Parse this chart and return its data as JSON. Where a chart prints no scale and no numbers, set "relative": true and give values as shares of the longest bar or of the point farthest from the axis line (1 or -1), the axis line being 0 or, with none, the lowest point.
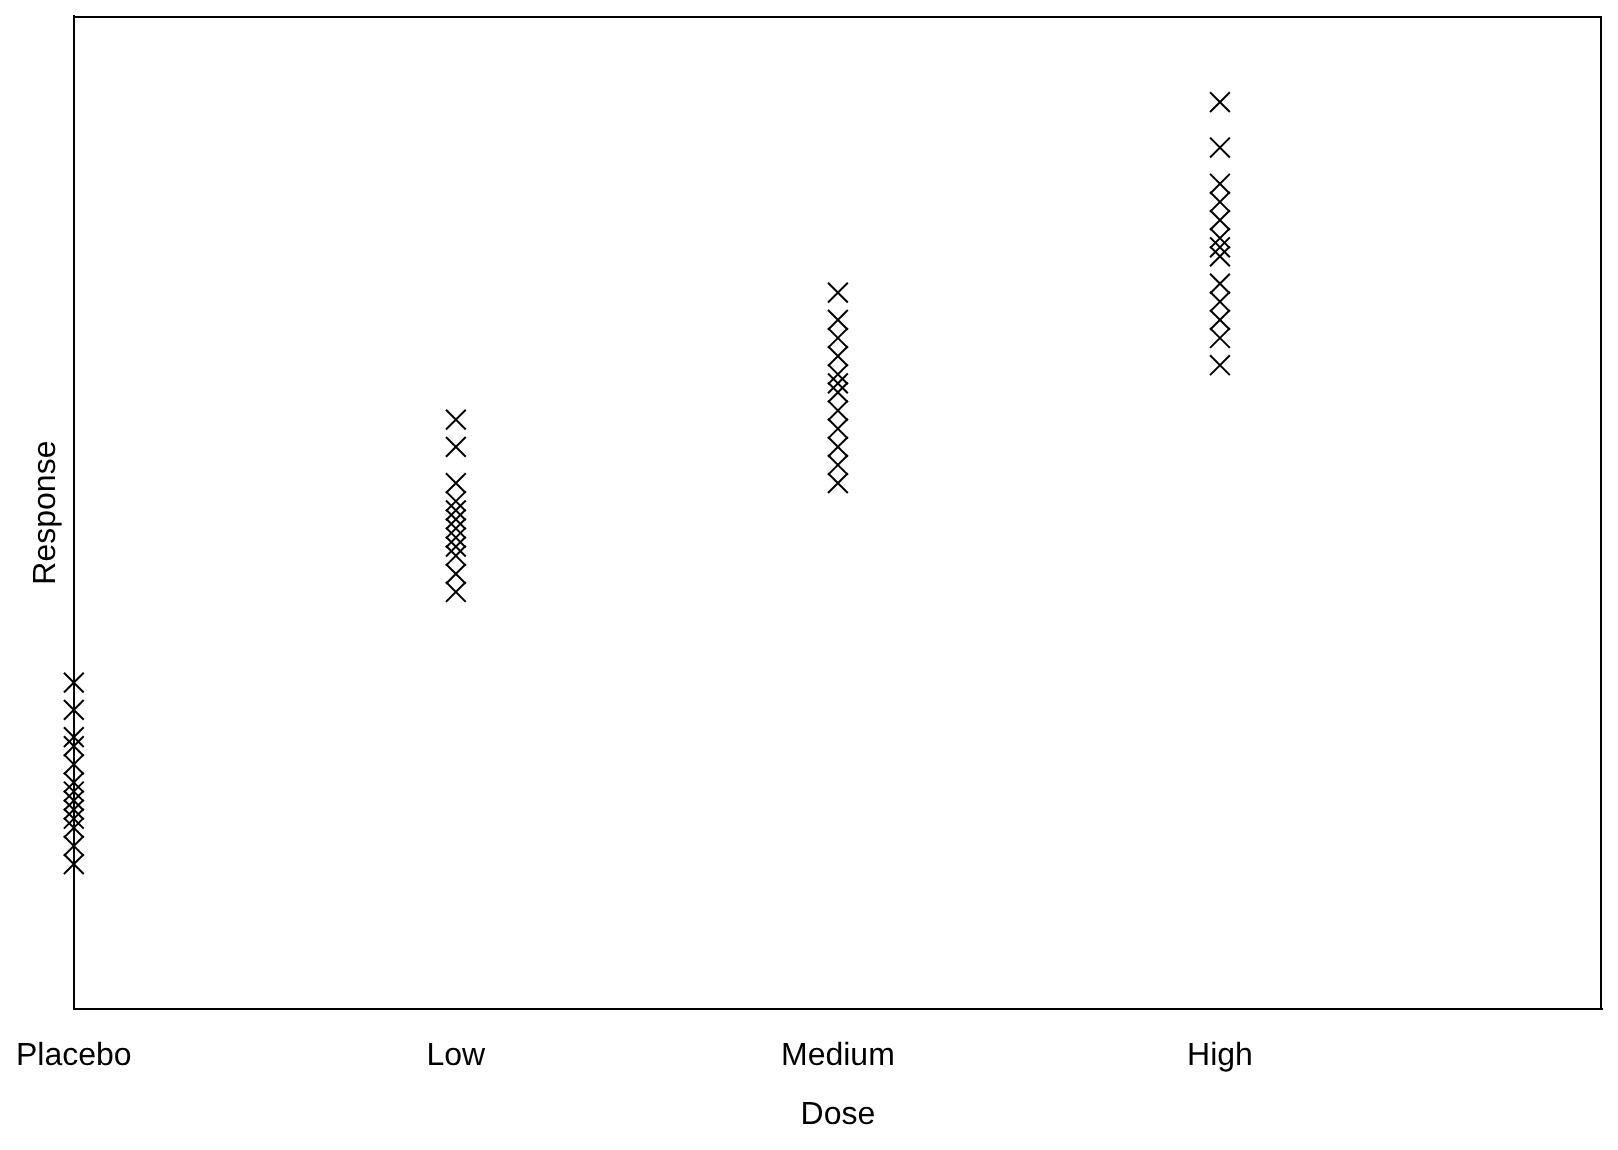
{
  "chart_data": {
    "type": "scatter",
    "xlabel": "Dose",
    "ylabel": "Response",
    "relative": true,
    "marker": "cross",
    "grid": false,
    "legend": false,
    "categories": [
      "Placebo",
      "Low",
      "Medium",
      "High",
      null
    ],
    "series": [
      {
        "color": "#000000",
        "x": [
          "Placebo",
          "Placebo",
          "Placebo",
          "Placebo",
          "Placebo",
          "Placebo",
          "Placebo",
          "Placebo",
          "Placebo",
          "Placebo",
          "Placebo",
          "Placebo",
          "Placebo"
        ],
        "values": [
          0.36,
          0.33,
          0.3,
          0.29,
          0.27,
          0.25,
          0.24,
          0.23,
          0.22,
          0.21,
          0.2,
          0.18,
          0.16
        ]
      },
      {
        "color": "#000000",
        "x": [
          "Low",
          "Low",
          "Low",
          "Low",
          "Low",
          "Low",
          "Low",
          "Low",
          "Low",
          "Low",
          "Low",
          "Low"
        ],
        "values": [
          0.65,
          0.62,
          0.58,
          0.56,
          0.55,
          0.54,
          0.53,
          0.52,
          0.51,
          0.5,
          0.48,
          0.46
        ]
      },
      {
        "color": "#000000",
        "x": [
          "Medium",
          "Medium",
          "Medium",
          "Medium",
          "Medium",
          "Medium",
          "Medium",
          "Medium",
          "Medium",
          "Medium",
          "Medium",
          "Medium"
        ],
        "values": [
          0.79,
          0.76,
          0.74,
          0.72,
          0.7,
          0.69,
          0.68,
          0.66,
          0.64,
          0.62,
          0.6,
          0.58
        ]
      },
      {
        "color": "#000000",
        "x": [
          "High",
          "High",
          "High",
          "High",
          "High",
          "High",
          "High",
          "High",
          "High",
          "High",
          "High",
          "High",
          "High"
        ],
        "values": [
          1.0,
          0.95,
          0.91,
          0.89,
          0.87,
          0.85,
          0.84,
          0.83,
          0.8,
          0.78,
          0.76,
          0.74,
          0.71
        ]
      }
    ]
  }
}
